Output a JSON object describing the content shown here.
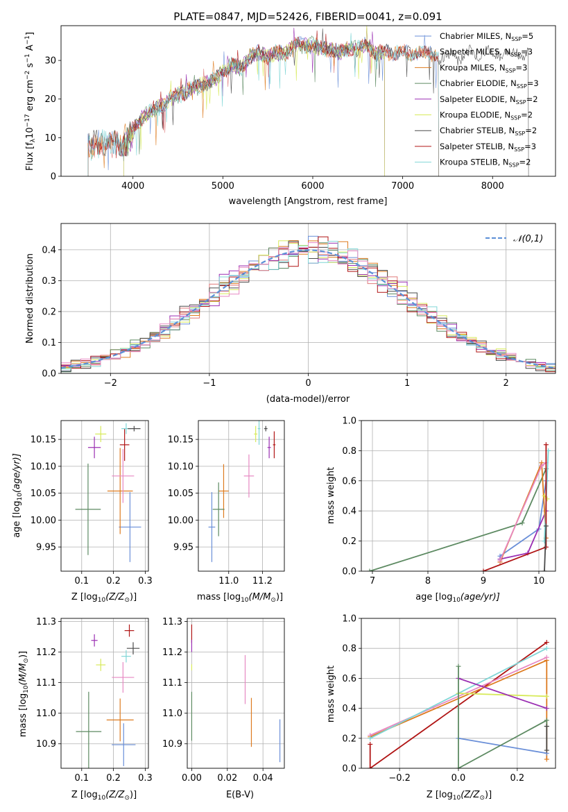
{
  "colors": {
    "chabrier_miles": "#6a8fd8",
    "salpeter_miles": "#e07a7a",
    "kroupa_miles": "#dd7a1e",
    "chabrier_elodie": "#5d8a62",
    "salpeter_elodie": "#9b2fb3",
    "kroupa_elodie": "#d7ea5a",
    "chabrier_stelib": "#4a4a4a",
    "salpeter_stelib": "#b01414",
    "kroupa_stelib": "#7fd6d6",
    "pink": "#e788c2"
  },
  "legend_labels": [
    "Chabrier MILES, N",
    "Salpeter MILES, N",
    "Kroupa MILES, N",
    "Chabrier ELODIE, N",
    "Salpeter ELODIE, N",
    "Kroupa ELODIE, N",
    "Chabrier STELIB, N",
    "Salpeter STELIB, N",
    "Kroupa STELIB, N"
  ],
  "legend_sub": "SSP",
  "legend_counts": [
    "=5",
    "=3",
    "=3",
    "=3",
    "=2",
    "=2",
    "=2",
    "=3",
    "=2"
  ],
  "chart_data": [
    {
      "type": "line",
      "title": "PLATE=0847, MJD=52426, FIBERID=0041, z=0.091",
      "xlabel": "wavelength [Angstrom, rest frame]",
      "ylabel": "Flux [f",
      "ylabel_sub": "λ",
      "ylabel_rest": "10",
      "ylabel_exp": "−17",
      "ylabel_units": " erg cm",
      "ylabel_units_exp": "−2",
      "ylabel_s": " s",
      "ylabel_s_exp": "−1",
      "ylabel_A": " A",
      "ylabel_A_exp": "−1",
      "ylabel_end": "]",
      "xlim": [
        3200,
        8700
      ],
      "ylim": [
        0,
        39
      ],
      "xticks": [
        "4000",
        "5000",
        "6000",
        "7000",
        "8000"
      ],
      "yticks": [
        "0",
        "10",
        "20",
        "30"
      ],
      "xtick_values": [
        4000,
        5000,
        6000,
        7000,
        8000
      ],
      "ytick_values": [
        0,
        10,
        20,
        30
      ],
      "spectrum_knots": [
        [
          3500,
          7
        ],
        [
          3600,
          9
        ],
        [
          3700,
          8
        ],
        [
          3800,
          9
        ],
        [
          3900,
          8
        ],
        [
          4000,
          12
        ],
        [
          4100,
          15
        ],
        [
          4200,
          17
        ],
        [
          4300,
          18
        ],
        [
          4400,
          20
        ],
        [
          4500,
          21
        ],
        [
          4600,
          22
        ],
        [
          4700,
          23
        ],
        [
          4800,
          24
        ],
        [
          4900,
          25
        ],
        [
          5000,
          27
        ],
        [
          5100,
          29
        ],
        [
          5200,
          28
        ],
        [
          5300,
          31
        ],
        [
          5400,
          32
        ],
        [
          5500,
          31
        ],
        [
          5600,
          32
        ],
        [
          5700,
          32
        ],
        [
          5800,
          34
        ],
        [
          5900,
          34
        ],
        [
          6000,
          34
        ],
        [
          6100,
          33
        ],
        [
          6200,
          33
        ],
        [
          6300,
          32
        ],
        [
          6400,
          33
        ],
        [
          6500,
          33
        ],
        [
          6600,
          34
        ],
        [
          6700,
          32
        ],
        [
          6800,
          32
        ],
        [
          6900,
          32
        ],
        [
          7000,
          32
        ],
        [
          7100,
          32
        ],
        [
          7200,
          32
        ],
        [
          7300,
          32
        ],
        [
          7400,
          31
        ],
        [
          7600,
          31
        ],
        [
          7800,
          32
        ],
        [
          8000,
          32
        ],
        [
          8200,
          32
        ],
        [
          8400,
          32
        ]
      ]
    },
    {
      "type": "line",
      "xlabel": "(data-model)/error",
      "ylabel": "Normed distribution",
      "legend": "𝒩(0,1)",
      "xlim": [
        -2.5,
        2.5
      ],
      "ylim": [
        0,
        0.485
      ],
      "xticks": [
        "−2",
        "−1",
        "0",
        "1",
        "2"
      ],
      "yticks": [
        "0.0",
        "0.1",
        "0.2",
        "0.3",
        "0.4"
      ],
      "xtick_values": [
        -2,
        -1,
        0,
        1,
        2
      ],
      "ytick_values": [
        0,
        0.1,
        0.2,
        0.3,
        0.4
      ],
      "bin_width": 0.1
    },
    {
      "type": "scatter",
      "xlabel": "Z [log",
      "xlabel_sub": "10",
      "xlabel_rest": "(Z/Z",
      "xlabel_sun": "⊙",
      "xlabel_end": ")]",
      "ylabel": "age  [log",
      "ylabel_sub": "10",
      "ylabel_rest": "(age/yr)]",
      "xlim": [
        0.035,
        0.31
      ],
      "ylim": [
        9.905,
        10.185
      ],
      "xticks": [
        "0.1",
        "0.2",
        "0.3"
      ],
      "yticks": [
        "9.95",
        "10.00",
        "10.05",
        "10.10",
        "10.15"
      ],
      "xtick_values": [
        0.1,
        0.2,
        0.3
      ],
      "ytick_values": [
        9.95,
        10.0,
        10.05,
        10.1,
        10.15
      ],
      "points": [
        {
          "c": "chabrier_miles",
          "x": 0.252,
          "y": 9.987,
          "dx": 0.07,
          "dy": 0.065
        },
        {
          "c": "kroupa_miles",
          "x": 0.221,
          "y": 10.054,
          "dx": 0.08,
          "dy": 0.08
        },
        {
          "c": "pink",
          "x": 0.23,
          "y": 10.082,
          "dx": 0.07,
          "dy": 0.05
        },
        {
          "c": "chabrier_elodie",
          "x": 0.12,
          "y": 10.02,
          "dx": 0.08,
          "dy": 0.085
        },
        {
          "c": "salpeter_elodie",
          "x": 0.14,
          "y": 10.135,
          "dx": 0.04,
          "dy": 0.02
        },
        {
          "c": "kroupa_elodie",
          "x": 0.16,
          "y": 10.16,
          "dx": 0.035,
          "dy": 0.015
        },
        {
          "c": "salpeter_stelib",
          "x": 0.235,
          "y": 10.14,
          "dx": 0.03,
          "dy": 0.03
        },
        {
          "c": "kroupa_stelib",
          "x": 0.24,
          "y": 10.17,
          "dx": 0.03,
          "dy": 0.01
        },
        {
          "c": "chabrier_stelib",
          "x": 0.265,
          "y": 10.17,
          "dx": 0.04,
          "dy": 0.005
        }
      ]
    },
    {
      "type": "scatter",
      "xlabel": "mass [log",
      "xlabel_sub": "10",
      "xlabel_rest": "(M/M",
      "xlabel_sun": "⊙",
      "xlabel_end": ")]",
      "xlim": [
        10.82,
        11.33
      ],
      "ylim": [
        9.905,
        10.185
      ],
      "xticks": [
        "11.0",
        "11.2"
      ],
      "yticks": [
        "9.95",
        "10.00",
        "10.05",
        "10.10",
        "10.15"
      ],
      "xtick_values": [
        11.0,
        11.2
      ],
      "ytick_values": [
        9.95,
        10.0,
        10.05,
        10.1,
        10.15
      ],
      "points": [
        {
          "c": "chabrier_miles",
          "x": 10.9,
          "y": 9.987,
          "dx": 0.04,
          "dy": 0.065
        },
        {
          "c": "kroupa_miles",
          "x": 10.97,
          "y": 10.054,
          "dx": 0.06,
          "dy": 0.05
        },
        {
          "c": "chabrier_elodie",
          "x": 10.94,
          "y": 10.02,
          "dx": 0.07,
          "dy": 0.05
        },
        {
          "c": "pink",
          "x": 11.12,
          "y": 10.082,
          "dx": 0.06,
          "dy": 0.04
        },
        {
          "c": "kroupa_elodie",
          "x": 11.16,
          "y": 10.16,
          "dx": 0.02,
          "dy": 0.015
        },
        {
          "c": "kroupa_stelib",
          "x": 11.18,
          "y": 10.17,
          "dx": 0.015,
          "dy": 0.03
        },
        {
          "c": "chabrier_stelib",
          "x": 11.22,
          "y": 10.17,
          "dx": 0.02,
          "dy": 0.005
        },
        {
          "c": "salpeter_elodie",
          "x": 11.24,
          "y": 10.135,
          "dx": 0.02,
          "dy": 0.02
        },
        {
          "c": "salpeter_stelib",
          "x": 11.27,
          "y": 10.14,
          "dx": 0.015,
          "dy": 0.025
        }
      ]
    },
    {
      "type": "line",
      "xlabel": "age  [log",
      "xlabel_sub": "10",
      "xlabel_rest": "(age/yr)]",
      "ylabel": "mass weight",
      "xlim": [
        6.8,
        10.3
      ],
      "ylim": [
        0,
        1
      ],
      "xticks": [
        "7",
        "8",
        "9",
        "10"
      ],
      "yticks": [
        "0.0",
        "0.2",
        "0.4",
        "0.6",
        "0.8",
        "1.0"
      ],
      "xtick_values": [
        7,
        8,
        9,
        10
      ],
      "ytick_values": [
        0,
        0.2,
        0.4,
        0.6,
        0.8,
        1.0
      ],
      "series": [
        {
          "c": "chabrier_elodie",
          "pts": [
            [
              6.95,
              0.0
            ],
            [
              9.7,
              0.32
            ],
            [
              10.13,
              0.68
            ]
          ]
        },
        {
          "c": "chabrier_miles",
          "pts": [
            [
              9.3,
              0.1
            ],
            [
              10.0,
              0.28
            ],
            [
              10.13,
              0.6
            ]
          ]
        },
        {
          "c": "salpeter_elodie",
          "pts": [
            [
              9.3,
              0.08
            ],
            [
              9.8,
              0.12
            ],
            [
              10.13,
              0.4
            ]
          ]
        },
        {
          "c": "kroupa_miles",
          "pts": [
            [
              9.3,
              0.06
            ],
            [
              10.05,
              0.72
            ],
            [
              10.13,
              0.22
            ]
          ]
        },
        {
          "c": "pink",
          "pts": [
            [
              9.3,
              0.07
            ],
            [
              10.05,
              0.7
            ],
            [
              10.13,
              0.72
            ]
          ]
        },
        {
          "c": "kroupa_elodie",
          "pts": [
            [
              10.1,
              0.5
            ],
            [
              10.15,
              0.48
            ]
          ]
        },
        {
          "c": "kroupa_stelib",
          "pts": [
            [
              10.1,
              0.2
            ],
            [
              10.17,
              0.8
            ]
          ]
        },
        {
          "c": "salpeter_stelib",
          "pts": [
            [
              9.0,
              0.0
            ],
            [
              10.13,
              0.16
            ],
            [
              10.13,
              0.84
            ]
          ]
        },
        {
          "c": "chabrier_stelib",
          "pts": [
            [
              10.1,
              0.0
            ],
            [
              10.13,
              0.3
            ]
          ]
        }
      ]
    },
    {
      "type": "scatter",
      "xlabel": "Z [log",
      "xlabel_sub": "10",
      "xlabel_rest": "(Z/Z",
      "xlabel_sun": "⊙",
      "xlabel_end": ")]",
      "ylabel": "mass [log",
      "ylabel_sub": "10",
      "ylabel_rest": "(M/M",
      "ylabel_sun": "⊙",
      "ylabel_end": ")]",
      "xlim": [
        0.035,
        0.31
      ],
      "ylim": [
        10.82,
        11.31
      ],
      "xticks": [
        "0.1",
        "0.2",
        "0.3"
      ],
      "yticks": [
        "10.9",
        "11.0",
        "11.1",
        "11.2",
        "11.3"
      ],
      "xtick_values": [
        0.1,
        0.2,
        0.3
      ],
      "ytick_values": [
        10.9,
        11.0,
        11.1,
        11.2,
        11.3
      ],
      "points": [
        {
          "c": "chabrier_miles",
          "x": 0.232,
          "y": 10.897,
          "dx": 0.075,
          "dy": 0.07
        },
        {
          "c": "kroupa_miles",
          "x": 0.221,
          "y": 10.978,
          "dx": 0.085,
          "dy": 0.07
        },
        {
          "c": "chabrier_elodie",
          "x": 0.122,
          "y": 10.94,
          "dx": 0.08,
          "dy": 0.13
        },
        {
          "c": "pink",
          "x": 0.23,
          "y": 11.117,
          "dx": 0.07,
          "dy": 0.05
        },
        {
          "c": "kroupa_elodie",
          "x": 0.16,
          "y": 11.158,
          "dx": 0.03,
          "dy": 0.02
        },
        {
          "c": "kroupa_stelib",
          "x": 0.24,
          "y": 11.186,
          "dx": 0.03,
          "dy": 0.02
        },
        {
          "c": "chabrier_stelib",
          "x": 0.262,
          "y": 11.212,
          "dx": 0.04,
          "dy": 0.02
        },
        {
          "c": "salpeter_elodie",
          "x": 0.14,
          "y": 11.238,
          "dx": 0.02,
          "dy": 0.02
        },
        {
          "c": "salpeter_stelib",
          "x": 0.25,
          "y": 11.27,
          "dx": 0.03,
          "dy": 0.02
        }
      ]
    },
    {
      "type": "scatter",
      "xlabel": "E(B-V)",
      "xlim": [
        -0.0025,
        0.052
      ],
      "ylim": [
        10.82,
        11.31
      ],
      "xticks": [
        "0.00",
        "0.02",
        "0.04"
      ],
      "yticks": [
        "10.9",
        "11.0",
        "11.1",
        "11.2",
        "11.3"
      ],
      "xtick_values": [
        0,
        0.02,
        0.04
      ],
      "ytick_values": [
        10.9,
        11.0,
        11.1,
        11.2,
        11.3
      ],
      "points": [
        {
          "c": "chabrier_elodie",
          "x": 0.0,
          "y": 10.99,
          "dx": 0,
          "dy": 0.08
        },
        {
          "c": "salpeter_stelib",
          "x": 0.0,
          "y": 11.26,
          "dx": 0,
          "dy": 0.03
        },
        {
          "c": "kroupa_elodie",
          "x": 0.0,
          "y": 11.15,
          "dx": 0,
          "dy": 0.01
        },
        {
          "c": "salpeter_elodie",
          "x": 0.0,
          "y": 11.22,
          "dx": 0,
          "dy": 0.02
        },
        {
          "c": "pink",
          "x": 0.03,
          "y": 11.11,
          "dx": 0,
          "dy": 0.08
        },
        {
          "c": "kroupa_miles",
          "x": 0.0335,
          "y": 10.97,
          "dx": 0,
          "dy": 0.08
        },
        {
          "c": "chabrier_miles",
          "x": 0.0495,
          "y": 10.91,
          "dx": 0,
          "dy": 0.07
        }
      ]
    },
    {
      "type": "line",
      "xlabel": "Z [log",
      "xlabel_sub": "10",
      "xlabel_rest": "(Z/Z",
      "xlabel_sun": "⊙",
      "xlabel_end": ")]",
      "ylabel": "mass weight",
      "xlim": [
        -0.33,
        0.33
      ],
      "ylim": [
        0,
        1
      ],
      "xticks": [
        "−0.2",
        "0.0",
        "0.2"
      ],
      "yticks": [
        "0.0",
        "0.2",
        "0.4",
        "0.6",
        "0.8",
        "1.0"
      ],
      "xtick_values": [
        -0.2,
        0,
        0.2
      ],
      "ytick_values": [
        0,
        0.2,
        0.4,
        0.6,
        0.8,
        1.0
      ],
      "series": [
        {
          "c": "salpeter_stelib",
          "pts": [
            [
              -0.3,
              0.16
            ],
            [
              -0.3,
              0.0
            ],
            [
              0.3,
              0.84
            ]
          ]
        },
        {
          "c": "kroupa_miles",
          "pts": [
            [
              -0.3,
              0.21
            ],
            [
              0.3,
              0.72
            ],
            [
              0.3,
              0.06
            ]
          ]
        },
        {
          "c": "pink",
          "pts": [
            [
              -0.3,
              0.22
            ],
            [
              0.3,
              0.74
            ]
          ]
        },
        {
          "c": "kroupa_stelib",
          "pts": [
            [
              -0.3,
              0.2
            ],
            [
              0.3,
              0.8
            ]
          ]
        },
        {
          "c": "kroupa_elodie",
          "pts": [
            [
              0.0,
              0.5
            ],
            [
              0.3,
              0.48
            ]
          ]
        },
        {
          "c": "salpeter_elodie",
          "pts": [
            [
              0.0,
              0.6
            ],
            [
              0.3,
              0.4
            ]
          ]
        },
        {
          "c": "chabrier_miles",
          "pts": [
            [
              0.0,
              0.2
            ],
            [
              0.3,
              0.1
            ]
          ]
        },
        {
          "c": "chabrier_elodie",
          "pts": [
            [
              0.0,
              0.68
            ],
            [
              0.0,
              0.0
            ],
            [
              0.3,
              0.32
            ],
            [
              0.3,
              0.28
            ]
          ]
        },
        {
          "c": "chabrier_stelib",
          "pts": [
            [
              0.3,
              0.12
            ],
            [
              0.3,
              0.28
            ]
          ]
        }
      ]
    }
  ]
}
